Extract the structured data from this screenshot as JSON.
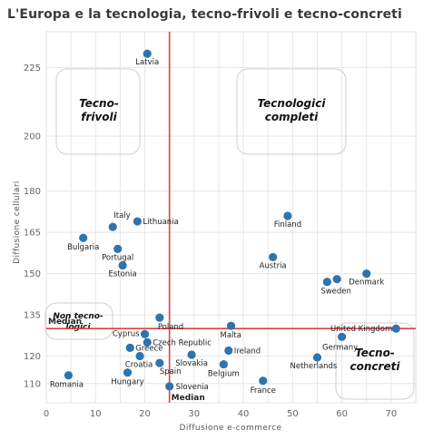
{
  "chart_data": {
    "type": "scatter",
    "title": "L'Europa e la tecnologia, tecno-frivoli e tecno-concreti",
    "xlabel": "Diffusione e-commerce",
    "ylabel": "Diffusione cellulari",
    "xlim": [
      0,
      75
    ],
    "ylim": [
      103,
      238
    ],
    "xticks": [
      0,
      10,
      20,
      30,
      40,
      50,
      60,
      70
    ],
    "yticks": [
      110,
      120,
      135,
      150,
      165,
      180,
      200,
      225
    ],
    "grid": true,
    "median_x": 25,
    "median_y": 130,
    "median_label": "Median",
    "quadrant_labels": [
      {
        "id": "tecno-frivoli",
        "lines": [
          "Tecno-",
          "frivoli"
        ]
      },
      {
        "id": "tecnologici-completi",
        "lines": [
          "Tecnologici",
          "completi"
        ]
      },
      {
        "id": "non-tecnologici",
        "lines": [
          "Non tecno-",
          "logici"
        ]
      },
      {
        "id": "tecno-concreti",
        "lines": [
          "Tecno-",
          "concreti"
        ]
      }
    ],
    "points": [
      {
        "label": "Latvia",
        "x": 20.5,
        "y": 230
      },
      {
        "label": "Italy",
        "x": 13.5,
        "y": 167
      },
      {
        "label": "Lithuania",
        "x": 18.5,
        "y": 169
      },
      {
        "label": "Bulgaria",
        "x": 7.5,
        "y": 163
      },
      {
        "label": "Portugal",
        "x": 14.5,
        "y": 159
      },
      {
        "label": "Estonia",
        "x": 15.5,
        "y": 153
      },
      {
        "label": "Finland",
        "x": 49,
        "y": 171
      },
      {
        "label": "Austria",
        "x": 46,
        "y": 156
      },
      {
        "label": "Denmark",
        "x": 65,
        "y": 150
      },
      {
        "label": "Sweden",
        "x": 57,
        "y": 147
      },
      {
        "label": "Sweden",
        "x": 59,
        "y": 148
      },
      {
        "label": "Poland",
        "x": 23,
        "y": 134
      },
      {
        "label": "Malta",
        "x": 37.5,
        "y": 131
      },
      {
        "label": "Cyprus",
        "x": 20,
        "y": 128
      },
      {
        "label": "Czech Republic",
        "x": 20.5,
        "y": 125
      },
      {
        "label": "Greece",
        "x": 17,
        "y": 123
      },
      {
        "label": "Ireland",
        "x": 37,
        "y": 122
      },
      {
        "label": "Croatia",
        "x": 19,
        "y": 120
      },
      {
        "label": "Slovakia",
        "x": 29.5,
        "y": 120.5
      },
      {
        "label": "Spain",
        "x": 23,
        "y": 117.5
      },
      {
        "label": "Belgium",
        "x": 36,
        "y": 117
      },
      {
        "label": "United Kingdom",
        "x": 71,
        "y": 130
      },
      {
        "label": "Germany",
        "x": 60,
        "y": 127
      },
      {
        "label": "Netherlands",
        "x": 55,
        "y": 119.5
      },
      {
        "label": "Romania",
        "x": 4.5,
        "y": 113
      },
      {
        "label": "Hungary",
        "x": 16.5,
        "y": 114
      },
      {
        "label": "Slovenia",
        "x": 25,
        "y": 109
      },
      {
        "label": "France",
        "x": 44,
        "y": 111
      }
    ]
  }
}
